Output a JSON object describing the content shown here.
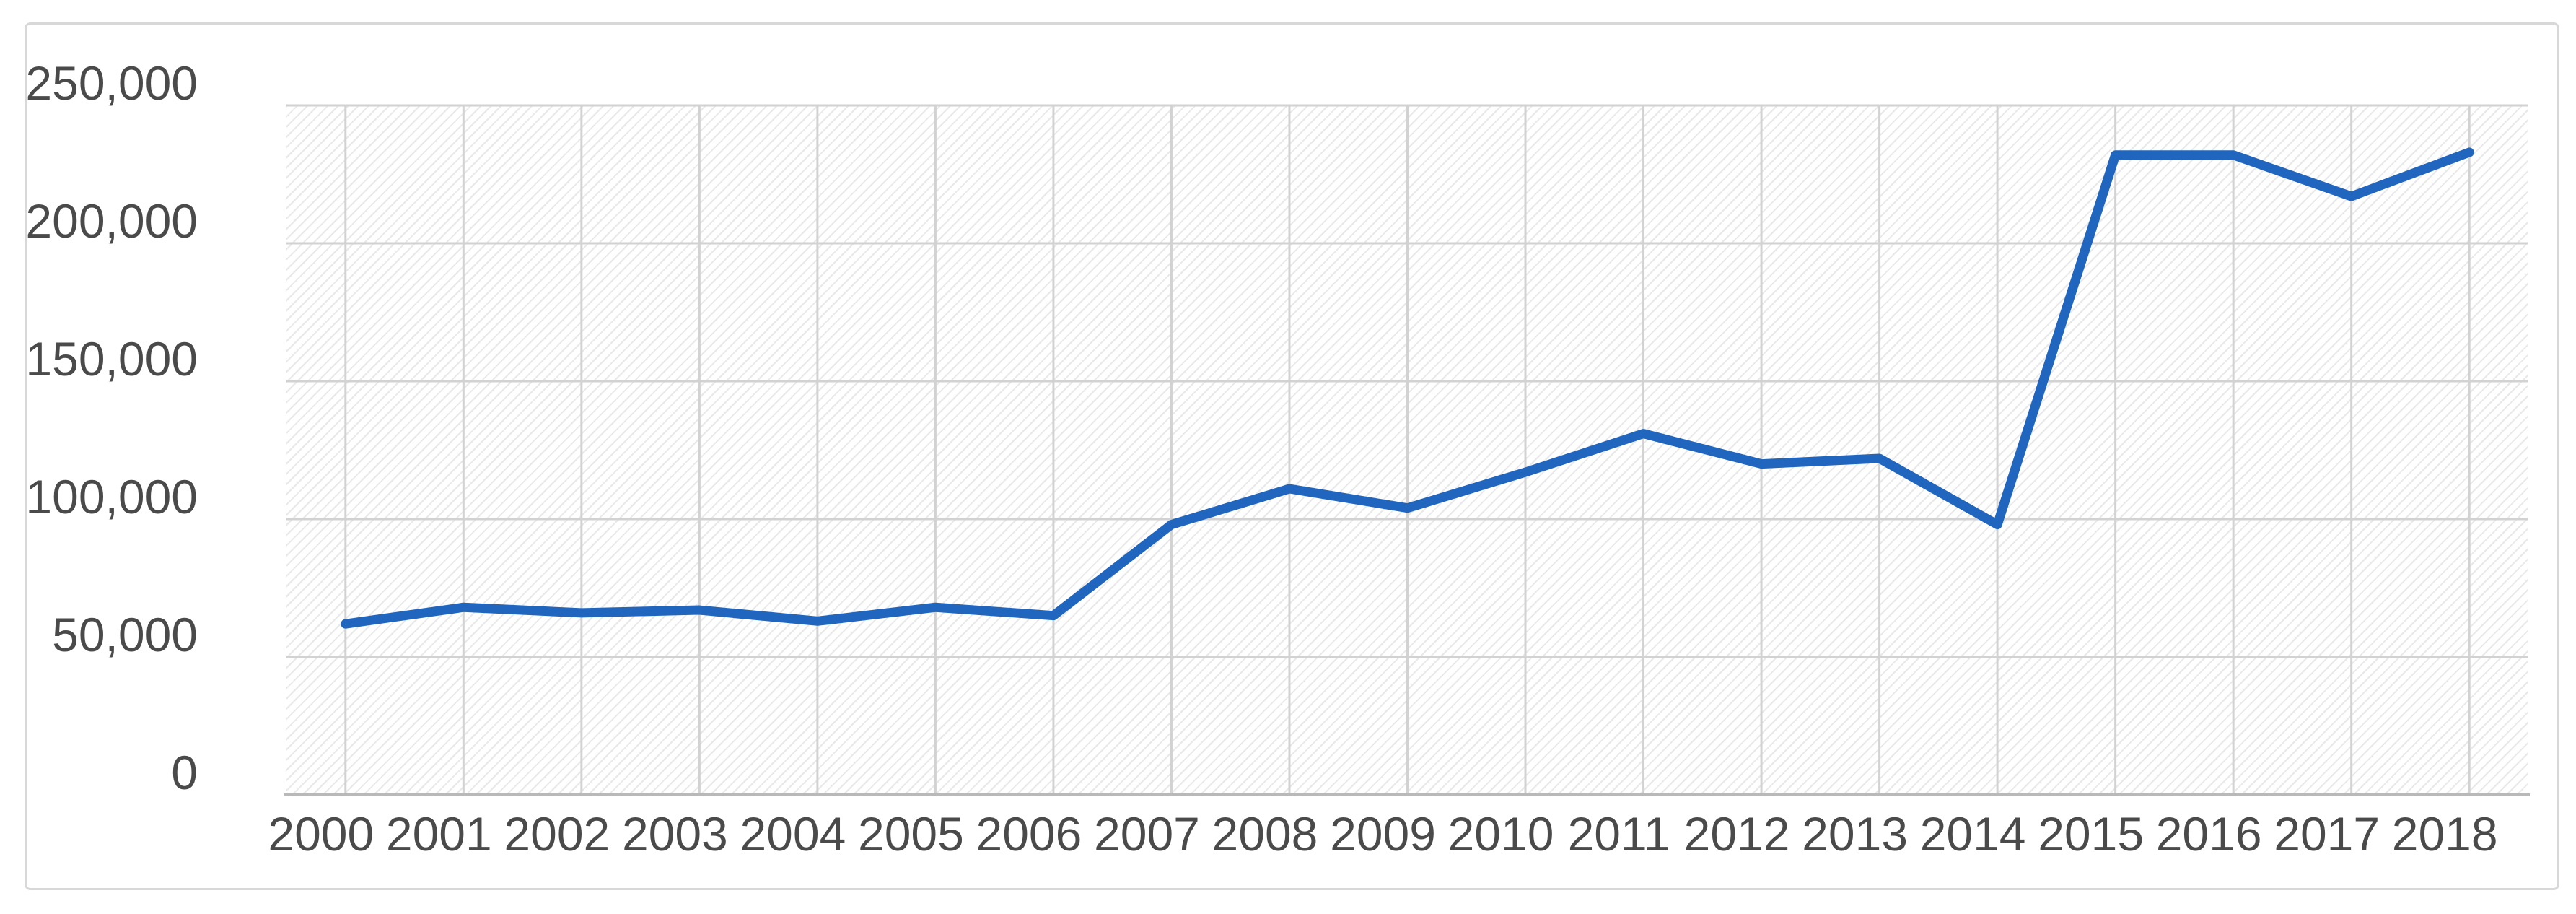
{
  "chart_data": {
    "type": "line",
    "title": "",
    "xlabel": "",
    "ylabel": "",
    "categories": [
      "2000",
      "2001",
      "2002",
      "2003",
      "2004",
      "2005",
      "2006",
      "2007",
      "2008",
      "2009",
      "2010",
      "2011",
      "2012",
      "2013",
      "2014",
      "2015",
      "2016",
      "2017",
      "2018"
    ],
    "values": [
      62000,
      68000,
      66000,
      67000,
      63000,
      68000,
      65000,
      98000,
      111000,
      104000,
      117000,
      131000,
      120000,
      122000,
      98000,
      232000,
      232000,
      217000,
      233000
    ],
    "ylim": [
      0,
      250000
    ],
    "yticks": [
      0,
      50000,
      100000,
      150000,
      200000,
      250000
    ],
    "ytick_labels": [
      "0",
      "50,000",
      "100,000",
      "150,000",
      "200,000",
      "250,000"
    ],
    "legend": "none",
    "grid": "horizontal and vertical major gridlines",
    "plot_area_fill": "light downward diagonal hatch",
    "colors": {
      "line": "#2065be",
      "gridline": "#d2d2d2",
      "axis_line": "#b9b9b9",
      "axis_text": "#4a4a4a",
      "frame_border": "#d8d8d8"
    }
  }
}
